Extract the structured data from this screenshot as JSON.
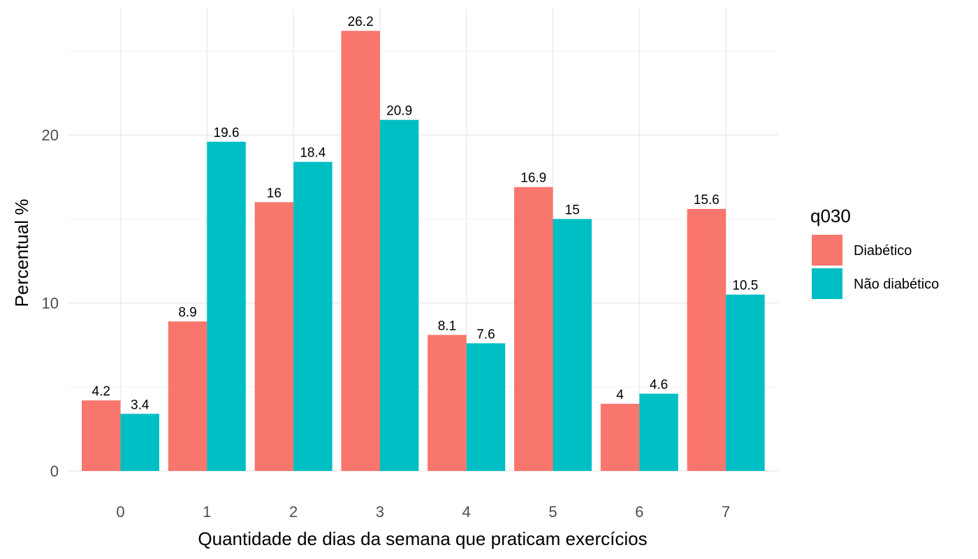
{
  "chart_data": {
    "type": "bar",
    "title": "",
    "xlabel": "Quantidade de dias da semana que praticam exercícios",
    "ylabel": "Percentual %",
    "categories": [
      "0",
      "1",
      "2",
      "3",
      "4",
      "5",
      "6",
      "7"
    ],
    "series": [
      {
        "name": "Diabético",
        "color": "#F8766D",
        "values": [
          4.2,
          8.9,
          16,
          26.2,
          8.1,
          16.9,
          4,
          15.6
        ],
        "labels": [
          "4.2",
          "8.9",
          "16",
          "26.2",
          "8.1",
          "16.9",
          "4",
          "15.6"
        ]
      },
      {
        "name": "Não diabético",
        "color": "#00BFC4",
        "values": [
          3.4,
          19.6,
          18.4,
          20.9,
          7.6,
          15,
          4.6,
          10.5
        ],
        "labels": [
          "3.4",
          "19.6",
          "18.4",
          "20.9",
          "7.6",
          "15",
          "4.6",
          "10.5"
        ]
      }
    ],
    "ylim": [
      0,
      27.5
    ],
    "yticks": [
      0,
      10,
      20
    ],
    "ytick_labels": [
      "0",
      "10",
      "20"
    ],
    "grid": true,
    "legend": {
      "title": "q030",
      "placement": "right"
    }
  }
}
